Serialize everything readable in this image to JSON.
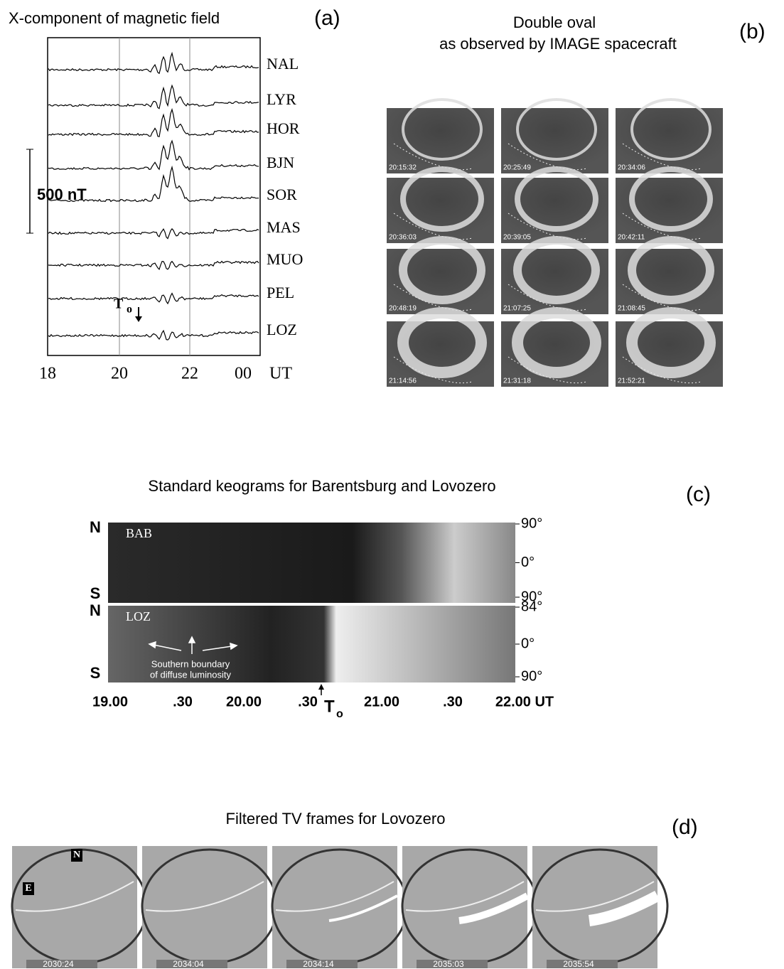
{
  "panel_a": {
    "title": "X-component of magnetic field",
    "label": "(a)",
    "scale": "500 nT",
    "stations": [
      "NAL",
      "LYR",
      "HOR",
      "BJN",
      "SOR",
      "MAS",
      "MUO",
      "PEL",
      "LOZ"
    ],
    "time_ticks": [
      "18",
      "20",
      "22",
      "00"
    ],
    "time_unit": "UT",
    "onset": "T",
    "onset_sub": "o"
  },
  "panel_b": {
    "title": [
      "Double oval",
      "as observed by  IMAGE  spacecraft"
    ],
    "label": "(b)",
    "timestamps": [
      "20:15:32",
      "20:25:49",
      "20:34:06",
      "20:36:03",
      "20:39:05",
      "20:42:11",
      "20:48:19",
      "21:07:25",
      "21:08:45",
      "21:14:56",
      "21:31:18",
      "21:52:21"
    ]
  },
  "panel_c": {
    "title": "Standard keograms  for Barentsburg  and Lovozero",
    "label": "(c)",
    "keograms": [
      {
        "station": "BAB",
        "north": "N",
        "south": "S",
        "angles": [
          "90°",
          "0°",
          "90°"
        ]
      },
      {
        "station": "LOZ",
        "north": "N",
        "south": "S",
        "angles": [
          "84°",
          "0°",
          "90°"
        ]
      }
    ],
    "annotation": [
      "Southern boundary",
      "of diffuse luminosity"
    ],
    "time_ticks": [
      "19.00",
      ".30",
      "20.00",
      ".30",
      "21.00",
      ".30",
      "22.00 UT"
    ],
    "onset": "T",
    "onset_sub": "o"
  },
  "panel_d": {
    "title": "Filtered TV frames for Lovozero",
    "label": "(d)",
    "frame_marks": [
      "N",
      "E"
    ],
    "timestamps": [
      "2030:24",
      "2034:04",
      "2034:14",
      "2035:03",
      "2035:54"
    ]
  }
}
